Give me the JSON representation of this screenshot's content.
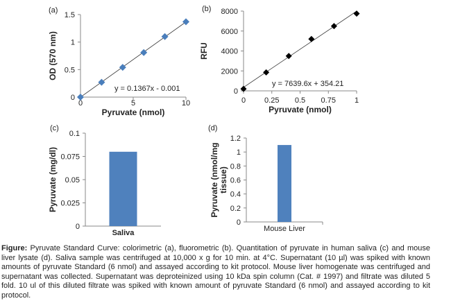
{
  "chart_data": [
    {
      "panel": "(a)",
      "type": "scatter",
      "xlabel": "Pyruvate (nmol)",
      "ylabel": "OD (570 nm)",
      "xlim": [
        0,
        10
      ],
      "ylim": [
        0,
        1.5
      ],
      "xticks": [
        "0",
        "5",
        "10"
      ],
      "yticks": [
        "0",
        "0.5",
        "1",
        "1.5"
      ],
      "x": [
        0,
        2,
        4,
        6,
        8,
        10
      ],
      "y": [
        0,
        0.27,
        0.54,
        0.81,
        1.1,
        1.37
      ],
      "trendline": {
        "slope": 0.1367,
        "intercept": -0.001,
        "label": "y = 0.1367x  - 0.001"
      },
      "marker": "diamond",
      "color": "#4a7ebb",
      "grid": false
    },
    {
      "panel": "(b)",
      "type": "scatter",
      "xlabel": "Pyruvate (nmol)",
      "ylabel": "RFU",
      "xlim": [
        0,
        1
      ],
      "ylim": [
        0,
        8000
      ],
      "xticks": [
        "0",
        "0.25",
        "0.5",
        "0.75",
        "1"
      ],
      "yticks": [
        "0",
        "2000",
        "4000",
        "6000",
        "8000"
      ],
      "x": [
        0,
        0.2,
        0.4,
        0.6,
        0.8,
        1.0
      ],
      "y": [
        200,
        1850,
        3500,
        5200,
        6500,
        7750
      ],
      "trendline": {
        "slope": 7639.6,
        "intercept": 354.21,
        "label": "y = 7639.6x  + 354.21"
      },
      "marker": "diamond",
      "color": "#000000",
      "grid": false
    },
    {
      "panel": "(c)",
      "type": "bar",
      "categories": [
        "Saliva"
      ],
      "values": [
        0.08
      ],
      "ylabel": "Pyruvate (mg/dl)",
      "ylim": [
        0,
        0.1
      ],
      "yticks": [
        "0",
        "0.025",
        "0.05",
        "0.075",
        "0.1"
      ],
      "color": "#4f81bd",
      "grid": false
    },
    {
      "panel": "(d)",
      "type": "bar",
      "categories": [
        "Mouse Liver"
      ],
      "values": [
        1.1
      ],
      "ylabel": "Pyruvate (nmol/mg tissue)",
      "ylim": [
        0,
        1.2
      ],
      "yticks": [
        "0",
        "0.2",
        "0.4",
        "0.6",
        "0.8",
        "1",
        "1.2"
      ],
      "color": "#4f81bd",
      "grid": false
    }
  ],
  "caption": {
    "label": "Figure:",
    "text": " Pyruvate Standard Curve: colorimetric (a), fluorometric (b). Quantitation of pyruvate in human saliva (c) and mouse liver lysate (d). Saliva sample was centrifuged at 10,000 x g for 10 min. at 4°C. Supernatant (10 µl) was spiked with known amounts of pyruvate Standard (6 nmol) and assayed according to kit protocol. Mouse liver homogenate was centrifuged and supernatant was collected. Supernatant was deproteinized using 10 kDa spin column (Cat. # 1997) and filtrate was diluted 5 fold. 10 ul of this diluted filtrate was spiked with known amount of pyruvate Standard (6 nmol) and assayed according to kit protocol."
  }
}
